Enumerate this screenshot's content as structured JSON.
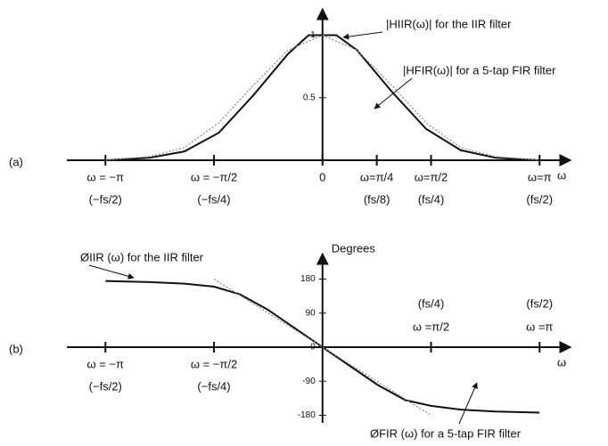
{
  "chart_data": [
    {
      "type": "line",
      "panel_label": "(a)",
      "x_label": "ω",
      "xlim": [
        -3.7,
        3.59
      ],
      "ylim": [
        0,
        1.21
      ],
      "xticks": [
        {
          "value": -3.1416,
          "label": "ω = −π"
        },
        {
          "value": -1.5708,
          "label": "ω = −π/2"
        },
        {
          "value": 0,
          "label": "0"
        },
        {
          "value": 0.7854,
          "label": "ω=π/4"
        },
        {
          "value": 1.5708,
          "label": "ω=π/2"
        },
        {
          "value": 3.1416,
          "label": "ω=π"
        }
      ],
      "xtick_sublabels": [
        "(−fs/2)",
        "(−fs/4)",
        null,
        "(fs/8)",
        "(fs/4)",
        "(fs/2)"
      ],
      "yticks": [
        0.5,
        1
      ],
      "series": [
        {
          "name": "|HIIR(ω)| for the IIR filter",
          "color": "#111111",
          "line_style": "solid",
          "x": [
            -3.14,
            -2.5,
            -2,
            -1.5,
            -1,
            -0.5,
            -0.2,
            0,
            0.2,
            0.5,
            1,
            1.5,
            2,
            2.5,
            3.14
          ],
          "values": [
            0,
            0.02,
            0.07,
            0.22,
            0.52,
            0.85,
            1,
            1,
            1,
            0.88,
            0.55,
            0.25,
            0.08,
            0.02,
            0
          ]
        },
        {
          "name": "|HFIR(ω)| for a 5-tap FIR filter",
          "color": "#888888",
          "line_style": "dotted",
          "x": [
            -3.14,
            -2.5,
            -2,
            -1.5,
            -1,
            -0.5,
            0,
            0.5,
            1,
            1.5,
            2,
            2.5,
            3.14
          ],
          "values": [
            0,
            0.03,
            0.1,
            0.3,
            0.6,
            0.88,
            1,
            0.88,
            0.6,
            0.3,
            0.1,
            0.03,
            0
          ]
        }
      ]
    },
    {
      "type": "line",
      "panel_label": "(b)",
      "x_label": "ω",
      "y_label": "Degrees",
      "xlim": [
        -3.7,
        3.59
      ],
      "ylim": [
        -200,
        247
      ],
      "xticks": [
        {
          "value": -3.1416,
          "label": "ω = −π"
        },
        {
          "value": -1.5708,
          "label": "ω = −π/2"
        },
        {
          "value": 1.5708,
          "label": "ω =π/2"
        },
        {
          "value": 3.1416,
          "label": "ω =π"
        }
      ],
      "xtick_sublabels": [
        "(−fs/2)",
        "(−fs/4)",
        "(fs/4)",
        "(fs/2)"
      ],
      "yticks": [
        -180,
        -90,
        0,
        90,
        180
      ],
      "series": [
        {
          "name": "ØIIR (ω) for the IIR filter",
          "color": "#111111",
          "line_style": "solid",
          "x": [
            -3.14,
            -2.5,
            -2,
            -1.57,
            -1.2,
            -0.8,
            -0.4,
            0,
            0.4,
            0.8,
            1.2,
            1.57,
            2,
            2.5,
            3.14
          ],
          "values": [
            175,
            172,
            168,
            160,
            140,
            100,
            50,
            0,
            -50,
            -100,
            -140,
            -155,
            -165,
            -170,
            -173
          ]
        },
        {
          "name": "ØFIR (ω) for a 5-tap FIR filter",
          "color": "#888888",
          "line_style": "dotted",
          "x": [
            -1.57,
            1.57
          ],
          "values": [
            180,
            -180
          ]
        }
      ]
    }
  ]
}
